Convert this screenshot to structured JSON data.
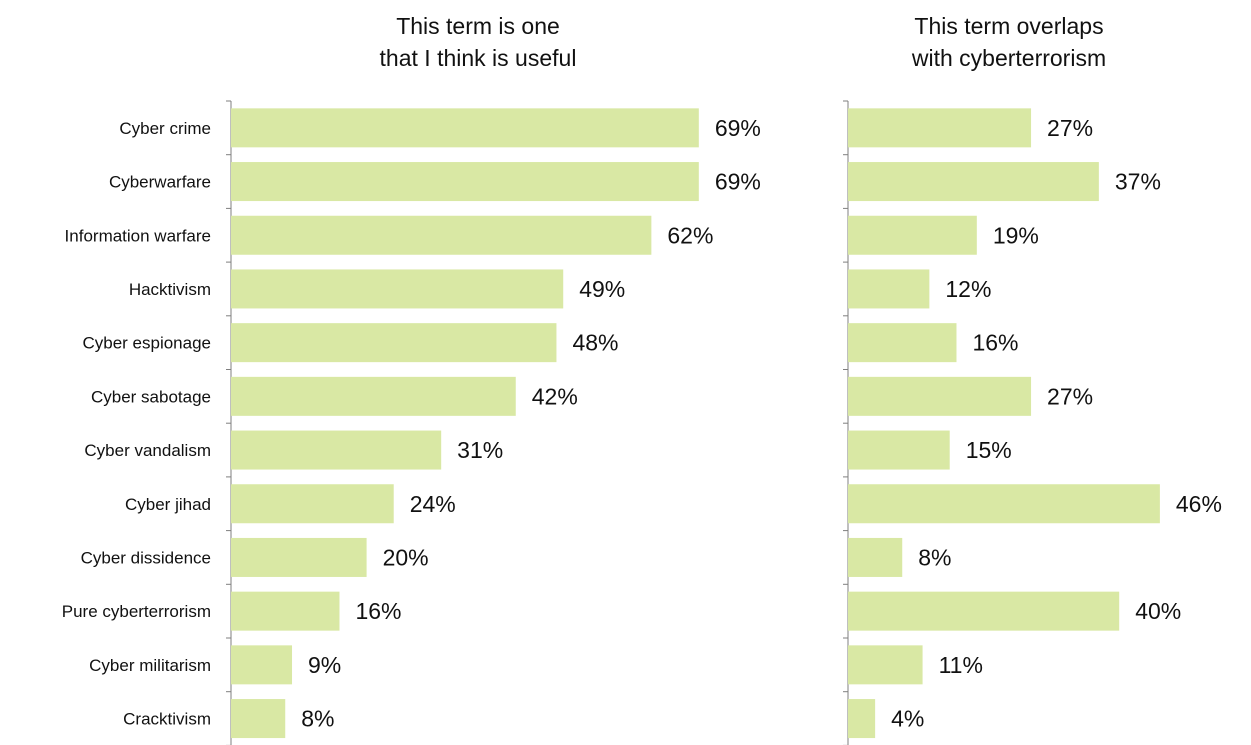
{
  "chart_data": [
    {
      "type": "bar",
      "orientation": "horizontal",
      "title_lines": [
        "This term is one",
        "that I think is useful"
      ],
      "categories": [
        "Cyber crime",
        "Cyberwarfare",
        "Information warfare",
        "Hacktivism",
        "Cyber espionage",
        "Cyber sabotage",
        "Cyber vandalism",
        "Cyber jihad",
        "Cyber dissidence",
        "Pure cyberterrorism",
        "Cyber militarism",
        "Cracktivism"
      ],
      "values": [
        69,
        69,
        62,
        49,
        48,
        42,
        31,
        24,
        20,
        16,
        9,
        8
      ],
      "value_labels": [
        "69%",
        "69%",
        "62%",
        "49%",
        "48%",
        "42%",
        "31%",
        "24%",
        "20%",
        "16%",
        "9%",
        "8%"
      ],
      "bar_color": "#d9e8a4",
      "xlim": [
        0,
        100
      ]
    },
    {
      "type": "bar",
      "orientation": "horizontal",
      "title_lines": [
        "This term overlaps",
        "with cyberterrorism"
      ],
      "categories": [
        "Cyber crime",
        "Cyberwarfare",
        "Information warfare",
        "Hacktivism",
        "Cyber espionage",
        "Cyber sabotage",
        "Cyber vandalism",
        "Cyber jihad",
        "Cyber dissidence",
        "Pure cyberterrorism",
        "Cyber militarism",
        "Cracktivism"
      ],
      "values": [
        27,
        37,
        19,
        12,
        16,
        27,
        15,
        46,
        8,
        40,
        11,
        4
      ],
      "value_labels": [
        "27%",
        "37%",
        "19%",
        "12%",
        "16%",
        "27%",
        "15%",
        "46%",
        "8%",
        "40%",
        "11%",
        "4%"
      ],
      "bar_color": "#d9e8a4",
      "xlim": [
        0,
        100
      ]
    }
  ]
}
